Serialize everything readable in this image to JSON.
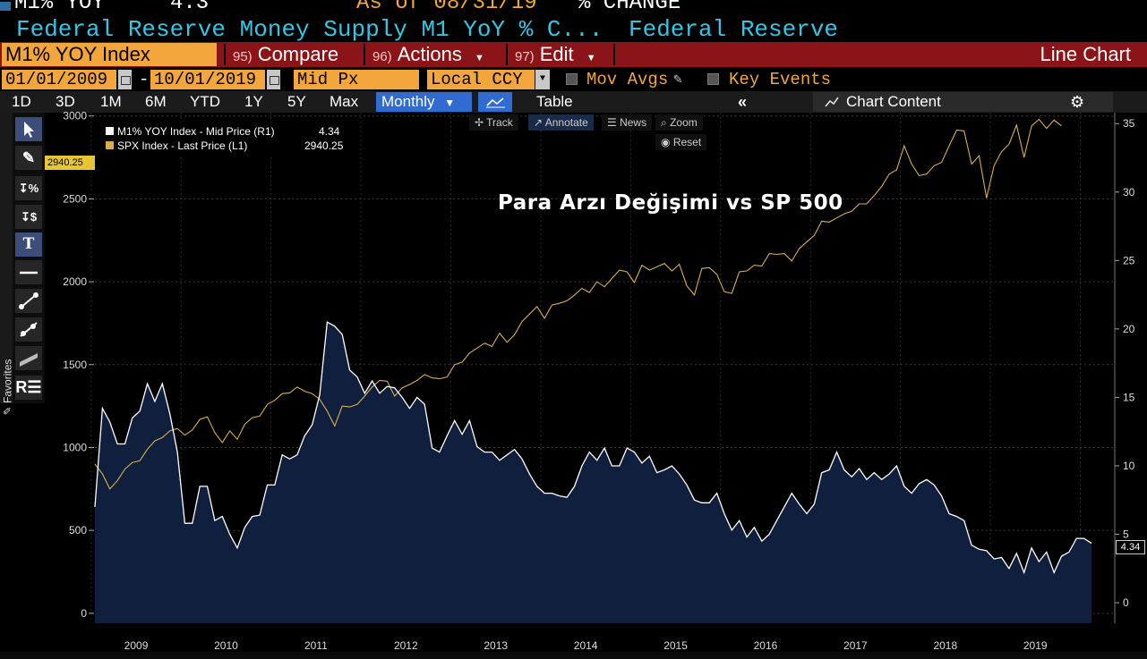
{
  "header": {
    "ticker_short": "M1% YOY",
    "last_value": "4.3",
    "as_of": "As of 08/31/19",
    "change_label": "% CHANGE",
    "title": "Federal Reserve Money Supply M1 YoY % C...",
    "source": "Federal Reserve"
  },
  "menu": {
    "ticker": "M1% YOY Index",
    "compare_num": "95)",
    "compare": "Compare",
    "actions_num": "96)",
    "actions": "Actions",
    "edit_num": "97)",
    "edit": "Edit",
    "chart_type": "Line Chart"
  },
  "controls": {
    "start_date": "01/01/2009",
    "dash": "-",
    "end_date": "10/01/2019",
    "price_field": "Mid Px",
    "currency": "Local CCY",
    "mov_avgs": "Mov Avgs",
    "key_events": "Key Events"
  },
  "toolbar": {
    "periods": [
      "1D",
      "3D",
      "1M",
      "6M",
      "YTD",
      "1Y",
      "5Y",
      "Max"
    ],
    "frequency": "Monthly",
    "table": "Table",
    "chart_content": "Chart Content"
  },
  "sidebar": {
    "favorites": "Favorites"
  },
  "chart_tools": {
    "track": "Track",
    "annotate": "Annotate",
    "news": "News",
    "zoom": "Zoom",
    "reset": "Reset"
  },
  "colors": {
    "m1": "#ffffff",
    "m1_fill": "#0f1f3d",
    "spx": "#d8b04a",
    "accent": "#f2a63b",
    "bar_red": "#8b1418"
  },
  "chart_data": {
    "type": "line",
    "annotation": "Para Arzı Değişimi vs SP 500",
    "x_labels": [
      "2009",
      "2010",
      "2011",
      "2012",
      "2013",
      "2014",
      "2015",
      "2016",
      "2017",
      "2018",
      "2019"
    ],
    "left_axis": {
      "ticks": [
        0,
        500,
        1000,
        1500,
        2000,
        2500,
        3000
      ],
      "range": [
        -60,
        3020
      ]
    },
    "right_axis": {
      "ticks": [
        0,
        5,
        10,
        15,
        20,
        25,
        30,
        35
      ],
      "range": [
        -1.5,
        35.8
      ]
    },
    "left_last_label": "2940.25",
    "right_last_label": "4.34",
    "series": [
      {
        "name": "M1% YOY Index - Mid Price (R1)",
        "last": "4.34",
        "axis": "right",
        "start": "2009-01",
        "values": [
          7.0,
          14.2,
          13.2,
          11.6,
          11.6,
          13.5,
          14.0,
          16.0,
          14.7,
          16.0,
          13.8,
          11.0,
          5.8,
          5.8,
          8.5,
          8.5,
          6.0,
          6.3,
          5.0,
          4.0,
          5.5,
          6.3,
          6.4,
          8.6,
          8.6,
          10.8,
          10.5,
          10.8,
          12.2,
          13.0,
          15.2,
          20.5,
          20.2,
          19.6,
          17.0,
          16.5,
          15.3,
          16.2,
          15.3,
          15.8,
          15.7,
          15.0,
          14.2,
          15.0,
          14.5,
          11.3,
          11.0,
          12.2,
          13.3,
          12.3,
          13.3,
          11.4,
          11.0,
          11.0,
          10.4,
          10.8,
          11.2,
          10.5,
          9.4,
          8.5,
          8.0,
          8.0,
          7.8,
          7.7,
          8.5,
          10.0,
          11.0,
          10.4,
          11.3,
          10.0,
          10.0,
          11.3,
          11.0,
          10.2,
          10.7,
          9.5,
          9.7,
          10.0,
          9.4,
          8.6,
          7.5,
          7.3,
          7.3,
          8.0,
          6.5,
          5.3,
          6.0,
          4.8,
          5.5,
          4.5,
          5.0,
          6.0,
          7.0,
          8.0,
          7.2,
          6.5,
          7.2,
          9.5,
          9.7,
          11.0,
          9.7,
          9.2,
          9.8,
          9.0,
          9.5,
          9.0,
          9.4,
          10.0,
          8.5,
          8.0,
          8.7,
          9.0,
          8.6,
          7.8,
          6.5,
          6.3,
          6.0,
          4.2,
          3.9,
          3.8,
          3.2,
          3.3,
          2.5,
          3.6,
          2.2,
          4.0,
          3.0,
          3.7,
          2.2,
          3.4,
          3.7,
          4.7,
          4.7,
          4.34
        ]
      },
      {
        "name": "SPX Index - Last Price (L1)",
        "last": "2940.25",
        "axis": "left",
        "start": "2009-01",
        "values": [
          900,
          840,
          750,
          800,
          870,
          910,
          920,
          990,
          1040,
          1060,
          1100,
          1115,
          1075,
          1105,
          1170,
          1185,
          1090,
          1030,
          1100,
          1050,
          1140,
          1180,
          1190,
          1260,
          1285,
          1325,
          1330,
          1365,
          1340,
          1325,
          1290,
          1220,
          1130,
          1250,
          1245,
          1260,
          1310,
          1365,
          1405,
          1400,
          1310,
          1360,
          1380,
          1405,
          1440,
          1420,
          1415,
          1425,
          1500,
          1515,
          1570,
          1600,
          1630,
          1610,
          1690,
          1635,
          1680,
          1760,
          1805,
          1850,
          1780,
          1860,
          1870,
          1885,
          1920,
          1960,
          1935,
          2000,
          1970,
          2020,
          2070,
          2060,
          1995,
          2100,
          2070,
          2090,
          2110,
          2065,
          2105,
          1975,
          1920,
          2080,
          2085,
          2045,
          1940,
          1930,
          2060,
          2065,
          2100,
          2095,
          2170,
          2165,
          2170,
          2125,
          2200,
          2240,
          2280,
          2365,
          2360,
          2385,
          2410,
          2425,
          2470,
          2470,
          2520,
          2575,
          2650,
          2675,
          2820,
          2710,
          2640,
          2650,
          2700,
          2720,
          2820,
          2915,
          2910,
          2710,
          2760,
          2505,
          2700,
          2785,
          2830,
          2945,
          2750,
          2940,
          2980,
          2925,
          2975,
          2940
        ]
      }
    ]
  }
}
